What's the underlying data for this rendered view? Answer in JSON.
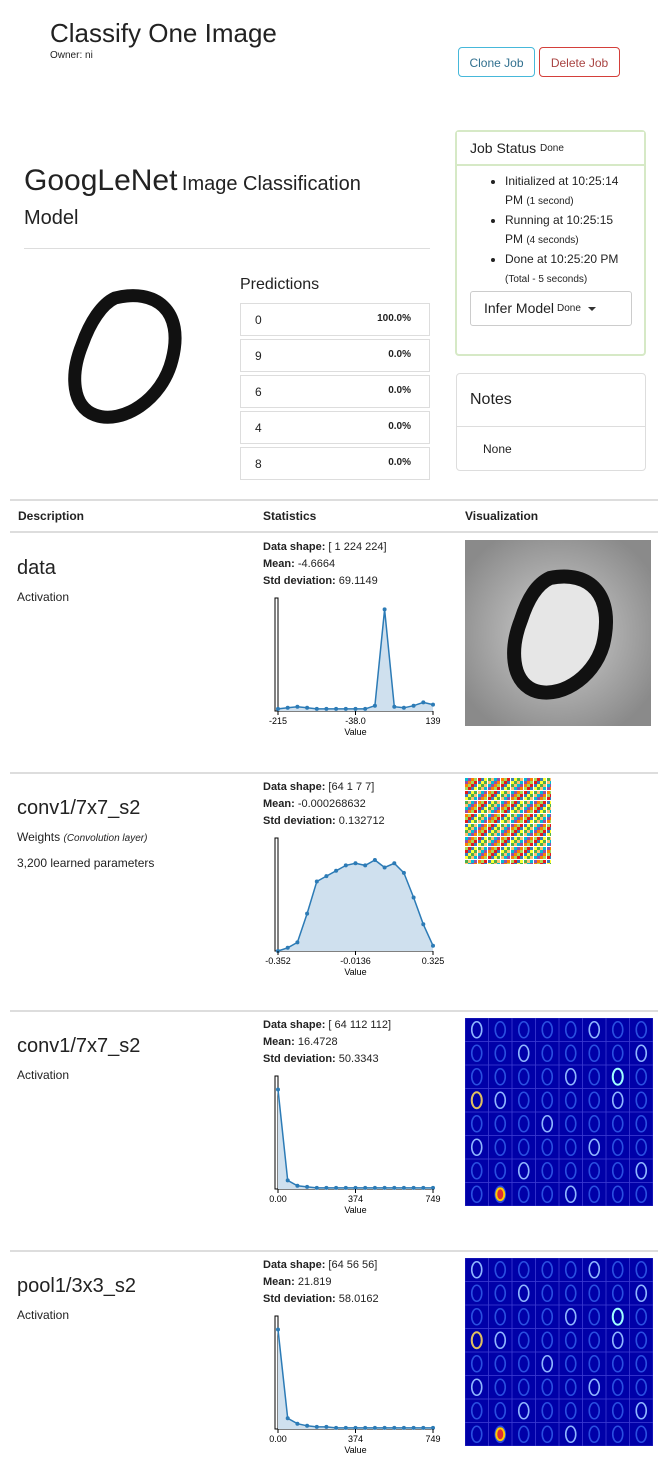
{
  "header": {
    "title": "Classify One Image",
    "owner": "Owner: ni",
    "clone_label": "Clone Job",
    "delete_label": "Delete Job"
  },
  "model": {
    "name": "GoogLeNet",
    "subtitle": "Image Classification",
    "subtitle2": "Model"
  },
  "predictions": {
    "heading": "Predictions",
    "rows": [
      {
        "label": "0",
        "pct": "100.0%"
      },
      {
        "label": "9",
        "pct": "0.0%"
      },
      {
        "label": "6",
        "pct": "0.0%"
      },
      {
        "label": "4",
        "pct": "0.0%"
      },
      {
        "label": "8",
        "pct": "0.0%"
      }
    ]
  },
  "job_status": {
    "title": "Job Status",
    "state": "Done",
    "items": [
      {
        "text": "Initialized at 10:25:14",
        "line2": "PM",
        "note": "(1 second)"
      },
      {
        "text": "Running at 10:25:15",
        "line2": "PM",
        "note": "(4 seconds)"
      },
      {
        "text": "Done at 10:25:20 PM",
        "line2": "",
        "note": "(Total - 5 seconds)"
      }
    ],
    "infer_label": "Infer Model",
    "infer_state": "Done"
  },
  "notes": {
    "title": "Notes",
    "body": "None"
  },
  "table": {
    "col1": "Description",
    "col2": "Statistics",
    "col3": "Visualization"
  },
  "layers": [
    {
      "name": "data",
      "kind": "Activation",
      "kind_note": "",
      "params": "",
      "shape": "[ 1 224 224]",
      "mean": "-4.6664",
      "std": "69.1149",
      "ticks": [
        "-215",
        "-38.0",
        "139"
      ],
      "xlabel": "Value",
      "hist": [
        0.02,
        0.03,
        0.04,
        0.03,
        0.02,
        0.02,
        0.02,
        0.02,
        0.02,
        0.02,
        0.05,
        0.95,
        0.04,
        0.03,
        0.05,
        0.08,
        0.06
      ]
    },
    {
      "name": "conv1/7x7_s2",
      "kind": "Weights",
      "kind_note": "(Convolution layer)",
      "params": "3,200 learned parameters",
      "shape": "[64 1 7 7]",
      "mean": "-0.000268632",
      "std": "0.132712",
      "ticks": [
        "-0.352",
        "-0.0136",
        "0.325"
      ],
      "xlabel": "Value",
      "hist": [
        0.0,
        0.03,
        0.08,
        0.35,
        0.65,
        0.7,
        0.75,
        0.8,
        0.82,
        0.8,
        0.85,
        0.78,
        0.82,
        0.73,
        0.5,
        0.25,
        0.05
      ]
    },
    {
      "name": "conv1/7x7_s2",
      "kind": "Activation",
      "kind_note": "",
      "params": "",
      "shape": "[ 64 112 112]",
      "mean": "16.4728",
      "std": "50.3343",
      "ticks": [
        "0.00",
        "374",
        "749"
      ],
      "xlabel": "Value",
      "hist": [
        0.93,
        0.08,
        0.03,
        0.02,
        0.01,
        0.01,
        0.01,
        0.01,
        0.01,
        0.01,
        0.01,
        0.01,
        0.01,
        0.01,
        0.01,
        0.01,
        0.01
      ]
    },
    {
      "name": "pool1/3x3_s2",
      "kind": "Activation",
      "kind_note": "",
      "params": "",
      "shape": "[64 56 56]",
      "mean": "21.819",
      "std": "58.0162",
      "ticks": [
        "0.00",
        "374",
        "749"
      ],
      "xlabel": "Value",
      "hist": [
        0.93,
        0.1,
        0.05,
        0.03,
        0.02,
        0.02,
        0.01,
        0.01,
        0.01,
        0.01,
        0.01,
        0.01,
        0.01,
        0.01,
        0.01,
        0.01,
        0.01
      ]
    }
  ],
  "colors": {
    "histo_line": "#2c7bb6",
    "histo_fill": "#cfe0ee",
    "feature_bg": "#0000a8"
  },
  "icons": {
    "dropdown": "caret-down-icon"
  }
}
